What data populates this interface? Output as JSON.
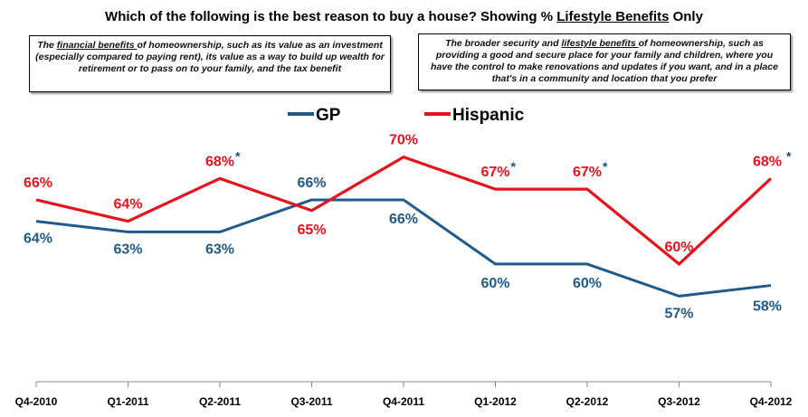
{
  "chart_data": {
    "type": "line",
    "title_pre": "Which of the following is the best reason to buy a house? Showing % ",
    "title_underlined": "Lifestyle Benefits",
    "title_post": " Only",
    "categories": [
      "Q4-2010",
      "Q1-2011",
      "Q2-2011",
      "Q3-2011",
      "Q4-2011",
      "Q1-2012",
      "Q2-2012",
      "Q3-2012",
      "Q4-2012"
    ],
    "series": [
      {
        "name": "GP",
        "color": "#1f5a8a",
        "values": [
          64,
          63,
          63,
          66,
          66,
          60,
          60,
          57,
          58
        ],
        "labels": [
          "64%",
          "63%",
          "63%",
          "66%",
          "66%",
          "60%",
          "60%",
          "57%",
          "58%"
        ]
      },
      {
        "name": "Hispanic",
        "color": "#e8121c",
        "values": [
          66,
          64,
          68,
          65,
          70,
          67,
          67,
          60,
          68
        ],
        "labels": [
          "66%",
          "64%",
          "68%",
          "65%",
          "70%",
          "67%",
          "67%",
          "60%",
          "68%"
        ]
      }
    ],
    "ylim": [
      49,
      72
    ],
    "significance_marker": "*",
    "significant_points": [
      2,
      5,
      6,
      8
    ]
  },
  "boxes": {
    "left": {
      "pre": "The ",
      "underlined": "financial benefits ",
      "post": "of homeownership, such as its value as an investment (especially compared to paying rent), its value as a way to build up wealth for retirement or to pass on to your family, and the tax benefit"
    },
    "right": {
      "pre": "The broader security and ",
      "underlined": "lifestyle benefits ",
      "post": "of homeownership, such as providing a good and secure place for your family and children, where you have the control to make renovations and updates if you want, and in a place that's in a community and location that you prefer"
    }
  }
}
